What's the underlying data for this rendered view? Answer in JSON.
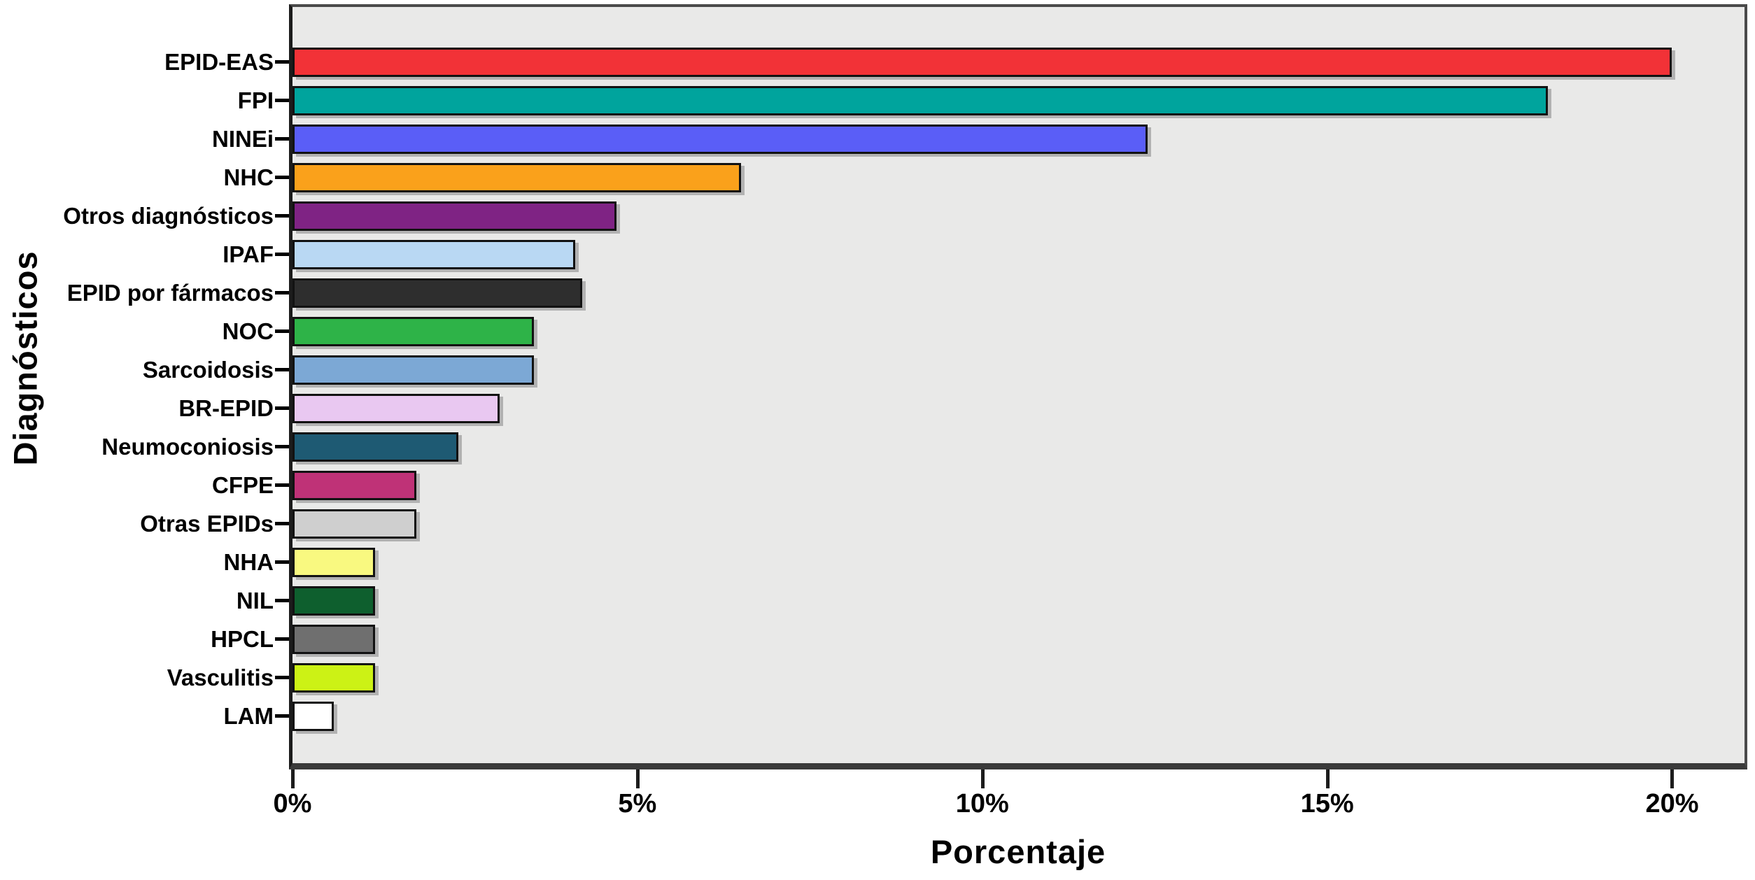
{
  "chart_data": {
    "type": "bar",
    "orientation": "horizontal",
    "title": "",
    "xlabel": "Porcentaje",
    "ylabel": "Diagnósticos",
    "unit": "percent",
    "xlim": [
      0,
      21.05
    ],
    "x_ticks": [
      0,
      5,
      10,
      15,
      20
    ],
    "x_tick_labels": [
      "0%",
      "5%",
      "10%",
      "15%",
      "20%"
    ],
    "grid": false,
    "legend": false,
    "plot_bg_color": "#e9e9e8",
    "page_bg_color": "#ffffff",
    "bar_border_color": "#121212",
    "categories": [
      "EPID-EAS",
      "FPI",
      "NINEi",
      "NHC",
      "Otros diagnósticos",
      "IPAF",
      "EPID por fármacos",
      "NOC",
      "Sarcoidosis",
      "BR-EPID",
      "Neumoconiosis",
      "CFPE",
      "Otras EPIDs",
      "NHA",
      "NIL",
      "HPCL",
      "Vasculitis",
      "LAM"
    ],
    "values": [
      20.0,
      18.2,
      12.4,
      6.5,
      4.7,
      4.1,
      4.2,
      3.5,
      3.5,
      3.0,
      2.4,
      1.8,
      1.8,
      1.2,
      1.2,
      1.2,
      1.2,
      0.6
    ],
    "colors": [
      "#f23237",
      "#00a49d",
      "#5a5ef7",
      "#faa11b",
      "#7f2384",
      "#b9d8f3",
      "#2e2e2e",
      "#2eb348",
      "#7ca8d5",
      "#e9c8f1",
      "#1e5a73",
      "#bf3277",
      "#cfcfcf",
      "#f9f980",
      "#0e5f2e",
      "#6f6f6f",
      "#ccf215",
      "#ffffff"
    ]
  }
}
